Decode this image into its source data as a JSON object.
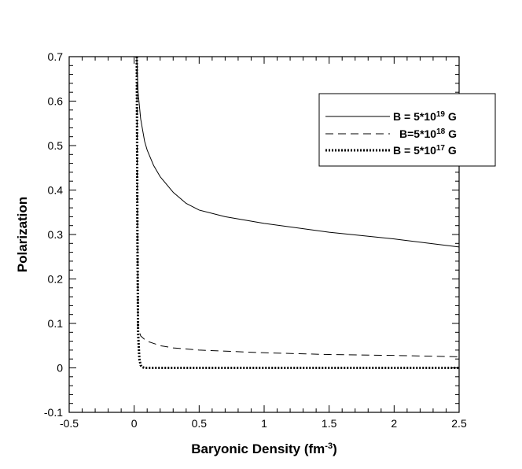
{
  "chart_data": {
    "type": "line",
    "xlabel": "Baryonic Density (fm",
    "xlabel_sup": "-3",
    "xlabel_tail": ")",
    "ylabel": "Polarization",
    "xlim": [
      -0.5,
      2.5
    ],
    "ylim": [
      -0.1,
      0.7
    ],
    "x_ticks": [
      -0.5,
      0,
      0.5,
      1,
      1.5,
      2,
      2.5
    ],
    "x_tick_labels": [
      "-0.5",
      "0",
      "0.5",
      "1",
      "1.5",
      "2",
      "2.5"
    ],
    "y_ticks": [
      -0.1,
      0,
      0.1,
      0.2,
      0.3,
      0.4,
      0.5,
      0.6,
      0.7
    ],
    "y_tick_labels": [
      "-0.1",
      "0",
      "0.1",
      "0.2",
      "0.3",
      "0.4",
      "0.5",
      "0.6",
      "0.7"
    ],
    "grid": false,
    "legend_position": "top-right",
    "series": [
      {
        "name": "B = 5*10",
        "name_sup": "19",
        "name_tail": " G",
        "style": "solid",
        "color": "#000000",
        "x": [
          0.02,
          0.03,
          0.05,
          0.08,
          0.1,
          0.15,
          0.2,
          0.3,
          0.4,
          0.5,
          0.7,
          1.0,
          1.5,
          2.0,
          2.5
        ],
        "y": [
          0.7,
          0.62,
          0.56,
          0.51,
          0.49,
          0.455,
          0.43,
          0.395,
          0.37,
          0.355,
          0.34,
          0.325,
          0.305,
          0.29,
          0.272
        ]
      },
      {
        "name": "B=5*10",
        "name_sup": "18",
        "name_tail": " G",
        "style": "dashed",
        "color": "#000000",
        "x": [
          0.02,
          0.03,
          0.05,
          0.08,
          0.1,
          0.15,
          0.2,
          0.3,
          0.5,
          1.0,
          1.5,
          2.0,
          2.5
        ],
        "y": [
          0.7,
          0.09,
          0.072,
          0.064,
          0.06,
          0.055,
          0.05,
          0.045,
          0.04,
          0.034,
          0.03,
          0.028,
          0.025
        ]
      },
      {
        "name": "B = 5*10",
        "name_sup": "17",
        "name_tail": " G",
        "style": "dotted",
        "color": "#000000",
        "x": [
          0.02,
          0.025,
          0.03,
          0.04,
          0.05,
          0.06,
          0.08,
          0.1,
          0.5,
          1.0,
          1.5,
          2.0,
          2.5
        ],
        "y": [
          0.7,
          0.3,
          0.08,
          0.02,
          0.006,
          0.002,
          0.0,
          0.0,
          0.0,
          0.0,
          0.0,
          0.0,
          0.0
        ]
      }
    ]
  }
}
